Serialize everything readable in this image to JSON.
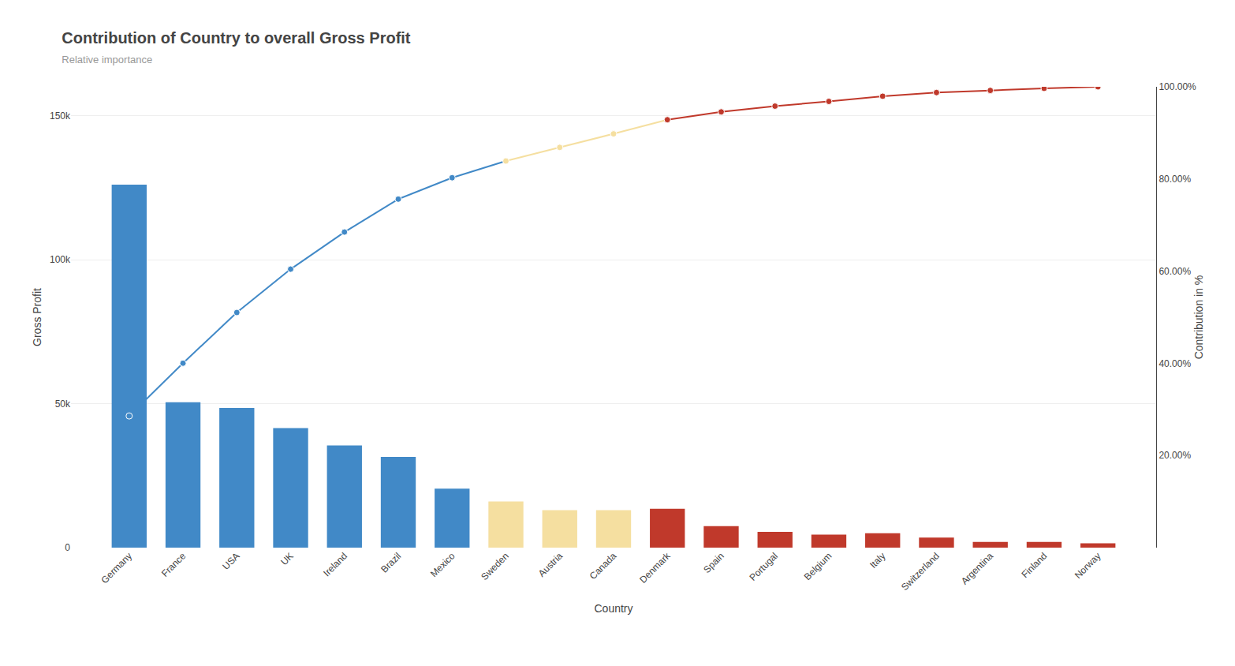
{
  "chart_data": {
    "type": "bar",
    "title": "Contribution of Country to overall Gross Profit",
    "subtitle": "Relative importance",
    "xlabel": "Country",
    "ylabel": "Gross Profit",
    "y2label": "Contribution in %",
    "categories": [
      "Germany",
      "France",
      "USA",
      "UK",
      "Ireland",
      "Brazil",
      "Mexico",
      "Sweden",
      "Austria",
      "Canada",
      "Denmark",
      "Spain",
      "Portugal",
      "Belgium",
      "Italy",
      "Switzerland",
      "Argentina",
      "Finland",
      "Norway"
    ],
    "series": [
      {
        "type": "bar",
        "colors": [
          "#4189c7",
          "#4189c7",
          "#4189c7",
          "#4189c7",
          "#4189c7",
          "#4189c7",
          "#4189c7",
          "#f5dfa0",
          "#f5dfa0",
          "#f5dfa0",
          "#c0392b",
          "#c0392b",
          "#c0392b",
          "#c0392b",
          "#c0392b",
          "#c0392b",
          "#c0392b",
          "#c0392b",
          "#c0392b"
        ],
        "values": [
          126000,
          50500,
          48500,
          41500,
          35500,
          31500,
          20500,
          16000,
          13000,
          13000,
          13500,
          7500,
          5500,
          4500,
          5000,
          3500,
          2000,
          2000,
          1500
        ]
      },
      {
        "type": "line",
        "axis": "y2",
        "marker": "circle",
        "colors": [
          "#4189c7",
          "#4189c7",
          "#4189c7",
          "#4189c7",
          "#4189c7",
          "#4189c7",
          "#4189c7",
          "#f5dfa0",
          "#f5dfa0",
          "#f5dfa0",
          "#c0392b",
          "#c0392b",
          "#c0392b",
          "#c0392b",
          "#c0392b",
          "#c0392b",
          "#c0392b",
          "#c0392b",
          "#c0392b"
        ],
        "values": [
          0.285714286,
          0.400226757,
          0.510204082,
          0.60430839,
          0.684807256,
          0.756235828,
          0.802721088,
          0.839002268,
          0.868480726,
          0.897959184,
          0.928571429,
          0.945578231,
          0.958049887,
          0.968253968,
          0.979591837,
          0.987528345,
          0.992063492,
          0.996598639,
          1.0
        ]
      }
    ],
    "ylim": [
      0,
      160000
    ],
    "yticks": [
      0,
      {
        "value": 50000,
        "label": "50k"
      },
      {
        "value": 100000,
        "label": "100k"
      },
      {
        "value": 150000,
        "label": "150k"
      }
    ],
    "y2lim": [
      0,
      1
    ],
    "y2ticks": [
      {
        "value": 0.2,
        "label": "20.00%"
      },
      {
        "value": 0.4,
        "label": "40.00%"
      },
      {
        "value": 0.6,
        "label": "60.00%"
      },
      {
        "value": 0.8,
        "label": "80.00%"
      },
      {
        "value": 1.0,
        "label": "100.00%"
      }
    ],
    "grid": true
  }
}
